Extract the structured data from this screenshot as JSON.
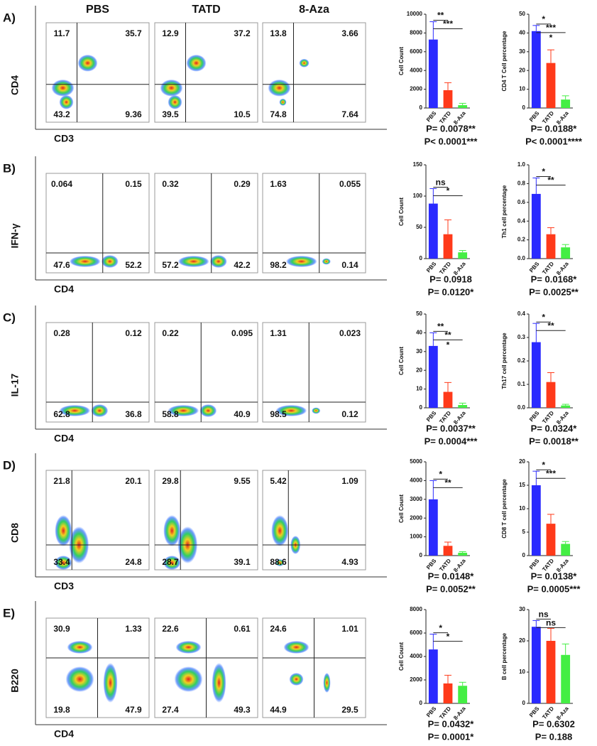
{
  "bar_colors": [
    "#2a2aff",
    "#ff3a1a",
    "#44ee44"
  ],
  "panels": [
    {
      "label": "A)",
      "y_axis": "CD4",
      "x_axis": "CD3",
      "plots": [
        {
          "title": "PBS",
          "quadrants": [
            "11.7",
            "35.7",
            "43.2",
            "9.36"
          ]
        },
        {
          "title": "TATD",
          "quadrants": [
            "12.9",
            "37.2",
            "39.5",
            "10.5"
          ]
        },
        {
          "title": "8-Aza",
          "quadrants": [
            "13.8",
            "3.66",
            "74.8",
            "7.64"
          ]
        }
      ],
      "charts": [
        {
          "y_label": "Cell Count",
          "categories": [
            "PBS",
            "TATD",
            "8-Aza"
          ],
          "values": [
            7300,
            1900,
            300
          ],
          "errors": [
            1900,
            800,
            200
          ],
          "ylim": [
            0,
            10000
          ],
          "yticks": [
            0,
            2000,
            4000,
            6000,
            8000,
            10000
          ],
          "significance": [
            "**",
            "***"
          ],
          "p_values": [
            "P= 0.0078**",
            "P< 0.0001***"
          ]
        },
        {
          "y_label": "CD4 T Cell percentage",
          "categories": [
            "PBS",
            "TATD",
            "8-Aza"
          ],
          "values": [
            41,
            24,
            4.5
          ],
          "errors": [
            3,
            7,
            2
          ],
          "ylim": [
            0,
            50
          ],
          "yticks": [
            0,
            10,
            20,
            30,
            40,
            50
          ],
          "significance": [
            "*",
            "***",
            "*"
          ],
          "p_values": [
            "P= 0.0188*",
            "P< 0.0001****"
          ]
        }
      ]
    },
    {
      "label": "B)",
      "y_axis": "IFN-γ",
      "x_axis": "CD4",
      "plots": [
        {
          "quadrants": [
            "0.064",
            "0.15",
            "47.6",
            "52.2"
          ]
        },
        {
          "quadrants": [
            "0.32",
            "0.29",
            "57.2",
            "42.2"
          ]
        },
        {
          "quadrants": [
            "1.63",
            "0.055",
            "98.2",
            "0.14"
          ]
        }
      ],
      "charts": [
        {
          "y_label": "Cell Count",
          "categories": [
            "PBS",
            "TATD",
            "8-Aza"
          ],
          "values": [
            88,
            39,
            10
          ],
          "errors": [
            24,
            23,
            3
          ],
          "ylim": [
            0,
            150
          ],
          "yticks": [
            0,
            50,
            100,
            150
          ],
          "significance": [
            "ns",
            "*"
          ],
          "p_values": [
            "P= 0.0918",
            "P= 0.0120*"
          ]
        },
        {
          "y_label": "Th1 cell percentage",
          "categories": [
            "PBS",
            "TATD",
            "8-Aza"
          ],
          "values": [
            0.69,
            0.26,
            0.12
          ],
          "errors": [
            0.17,
            0.07,
            0.03
          ],
          "ylim": [
            0,
            1
          ],
          "yticks": [
            {
              "value": 0,
              "label": "0.0"
            },
            0.2,
            0.4,
            0.6,
            0.8,
            {
              "value": 1,
              "label": "1.0"
            }
          ],
          "significance": [
            "*",
            "**"
          ],
          "p_values": [
            "P= 0.0168*",
            "P= 0.0025**"
          ]
        }
      ]
    },
    {
      "label": "C)",
      "y_axis": "IL-17",
      "x_axis": "CD4",
      "plots": [
        {
          "quadrants": [
            "0.28",
            "0.12",
            "62.8",
            "36.8"
          ]
        },
        {
          "quadrants": [
            "0.22",
            "0.095",
            "58.8",
            "40.9"
          ]
        },
        {
          "quadrants": [
            "1.31",
            "0.023",
            "98.5",
            "0.12"
          ]
        }
      ],
      "charts": [
        {
          "y_label": "Cell Count",
          "categories": [
            "PBS",
            "TATD",
            "8-Aza"
          ],
          "values": [
            33,
            8.5,
            1.5
          ],
          "errors": [
            7,
            5,
            1
          ],
          "ylim": [
            0,
            50
          ],
          "yticks": [
            0,
            10,
            20,
            30,
            40,
            50
          ],
          "significance": [
            "**",
            "**",
            "*"
          ],
          "p_values": [
            "P= 0.0037**",
            "P= 0.0004***"
          ]
        },
        {
          "y_label": "Th17 cell percentage",
          "categories": [
            "PBS",
            "TATD",
            "8-Aza"
          ],
          "values": [
            0.28,
            0.11,
            0.01
          ],
          "errors": [
            0.08,
            0.04,
            0.005
          ],
          "ylim": [
            0,
            0.4
          ],
          "yticks": [
            {
              "value": 0,
              "label": "0.0"
            },
            0.1,
            0.2,
            0.3,
            0.4
          ],
          "significance": [
            "*",
            "**"
          ],
          "p_values": [
            "P= 0.0324*",
            "P= 0.0018**"
          ]
        }
      ]
    },
    {
      "label": "D)",
      "y_axis": "CD8",
      "x_axis": "CD3",
      "plots": [
        {
          "quadrants": [
            "21.8",
            "20.1",
            "33.4",
            "24.8"
          ]
        },
        {
          "quadrants": [
            "29.8",
            "9.55",
            "28.7",
            "39.1"
          ]
        },
        {
          "quadrants": [
            "5.42",
            "1.09",
            "88.6",
            "4.93"
          ]
        }
      ],
      "charts": [
        {
          "y_label": "Cell Count",
          "categories": [
            "PBS",
            "TATD",
            "8-Aza"
          ],
          "values": [
            3000,
            520,
            150
          ],
          "errors": [
            1000,
            200,
            60
          ],
          "ylim": [
            0,
            5000
          ],
          "yticks": [
            0,
            1000,
            2000,
            3000,
            4000,
            5000
          ],
          "significance": [
            "*",
            "**"
          ],
          "p_values": [
            "P= 0.0148*",
            "P= 0.0052**"
          ]
        },
        {
          "y_label": "CD8 T cell percentage",
          "categories": [
            "PBS",
            "TATD",
            "8-Aza"
          ],
          "values": [
            15,
            6.8,
            2.5
          ],
          "errors": [
            3,
            2,
            0.5
          ],
          "ylim": [
            0,
            20
          ],
          "yticks": [
            0,
            5,
            10,
            15,
            20
          ],
          "significance": [
            "*",
            "***"
          ],
          "p_values": [
            "P= 0.0138*",
            "P= 0.0005***"
          ]
        }
      ]
    },
    {
      "label": "E)",
      "y_axis": "B220",
      "x_axis": "CD4",
      "plots": [
        {
          "quadrants": [
            "30.9",
            "1.33",
            "19.8",
            "47.9"
          ]
        },
        {
          "quadrants": [
            "22.6",
            "0.61",
            "27.4",
            "49.3"
          ]
        },
        {
          "quadrants": [
            "24.6",
            "1.01",
            "44.9",
            "29.5"
          ]
        }
      ],
      "charts": [
        {
          "y_label": "Cell Count",
          "categories": [
            "PBS",
            "TATD",
            "8-Aza"
          ],
          "values": [
            4600,
            1700,
            1500
          ],
          "errors": [
            1300,
            700,
            300
          ],
          "ylim": [
            0,
            8000
          ],
          "yticks": [
            0,
            2000,
            4000,
            6000,
            8000
          ],
          "significance": [
            "*",
            "*"
          ],
          "p_values": [
            "P= 0.0432*",
            "P= 0.0001*"
          ]
        },
        {
          "y_label": "B cell percentage",
          "categories": [
            "PBS",
            "TATD",
            "8-Aza"
          ],
          "values": [
            24.5,
            20,
            15.5
          ],
          "errors": [
            2,
            4,
            3.5
          ],
          "ylim": [
            0,
            30
          ],
          "yticks": [
            0,
            10,
            20,
            30
          ],
          "significance": [
            "ns",
            "ns"
          ],
          "p_values": [
            "P= 0.6302",
            "P= 0.188"
          ]
        }
      ]
    }
  ]
}
